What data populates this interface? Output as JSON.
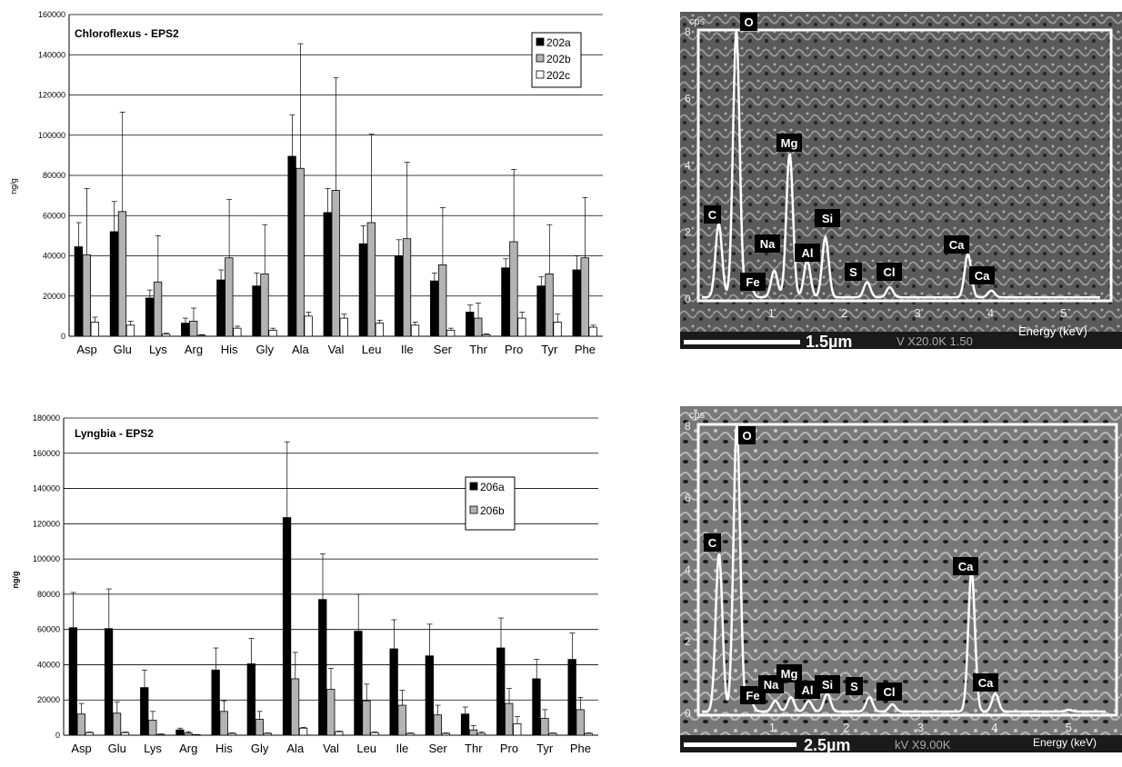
{
  "chart_data": [
    {
      "type": "bar",
      "title": "Chloroflexus - EPS2",
      "ylabel": "ng/g",
      "ylim": [
        0,
        160000
      ],
      "yticks": [
        0,
        20000,
        40000,
        60000,
        80000,
        100000,
        120000,
        140000,
        160000
      ],
      "grid": true,
      "legend_position": "top-right",
      "categories": [
        "Asp",
        "Glu",
        "Lys",
        "Arg",
        "His",
        "Gly",
        "Ala",
        "Val",
        "Leu",
        "Ile",
        "Ser",
        "Thr",
        "Pro",
        "Tyr",
        "Phe"
      ],
      "series": [
        {
          "name": "202a",
          "color": "#000000",
          "values": [
            44500,
            52000,
            19000,
            6500,
            28000,
            25000,
            89500,
            61500,
            46000,
            40000,
            27500,
            12000,
            34000,
            25000,
            33000
          ],
          "errors": [
            12000,
            15000,
            4000,
            2500,
            5000,
            6500,
            20500,
            12000,
            9000,
            8000,
            4000,
            3500,
            4500,
            4500,
            7000
          ]
        },
        {
          "name": "202b",
          "color": "#b3b3b3",
          "values": [
            40500,
            62000,
            27000,
            7500,
            39000,
            31000,
            83500,
            72500,
            56500,
            48500,
            35500,
            9000,
            47000,
            31000,
            39000
          ],
          "errors": [
            33000,
            49500,
            23000,
            6500,
            29000,
            24500,
            62000,
            56000,
            44000,
            38000,
            28500,
            7500,
            36000,
            24500,
            30000
          ]
        },
        {
          "name": "202c",
          "color": "#ffffff",
          "values": [
            7000,
            5500,
            1000,
            500,
            4000,
            3000,
            10000,
            9000,
            6500,
            5500,
            3000,
            800,
            9000,
            7000,
            4500
          ],
          "errors": [
            2500,
            2000,
            500,
            300,
            1000,
            1000,
            2000,
            2000,
            1500,
            1500,
            1000,
            400,
            3000,
            4000,
            1000
          ]
        }
      ]
    },
    {
      "type": "bar",
      "title": "Lyngbia - EPS2",
      "ylabel": "ng/g",
      "ylim": [
        0,
        180000
      ],
      "yticks": [
        0,
        20000,
        40000,
        60000,
        80000,
        100000,
        120000,
        140000,
        160000,
        180000
      ],
      "grid": true,
      "legend_position": "top-right",
      "categories": [
        "Asp",
        "Glu",
        "Lys",
        "Arg",
        "His",
        "Gly",
        "Ala",
        "Val",
        "Leu",
        "Ile",
        "Ser",
        "Thr",
        "Pro",
        "Tyr",
        "Phe"
      ],
      "series": [
        {
          "name": "206a",
          "color": "#000000",
          "values": [
            61000,
            60500,
            27000,
            3000,
            37000,
            40500,
            123500,
            77000,
            59000,
            49000,
            45000,
            12000,
            49500,
            32000,
            43000
          ],
          "errors": [
            20000,
            22500,
            10000,
            1000,
            12500,
            14500,
            43000,
            26000,
            21000,
            16500,
            18000,
            4000,
            17000,
            11000,
            15000
          ]
        },
        {
          "name": "206b",
          "color": "#b3b3b3",
          "values": [
            12000,
            12500,
            8500,
            1200,
            13500,
            9000,
            32000,
            26000,
            19500,
            17000,
            11500,
            3000,
            18000,
            9500,
            14500
          ],
          "errors": [
            6000,
            6500,
            5000,
            800,
            6000,
            4500,
            15000,
            12000,
            9500,
            8500,
            5500,
            2500,
            8500,
            5000,
            7000
          ]
        },
        {
          "name": "",
          "color": "#ffffff",
          "values": [
            1500,
            1500,
            500,
            300,
            1000,
            1000,
            4000,
            2000,
            1500,
            1000,
            1000,
            1000,
            6500,
            1000,
            1000
          ],
          "errors": [
            300,
            300,
            200,
            100,
            300,
            300,
            500,
            300,
            300,
            300,
            300,
            800,
            4000,
            300,
            300
          ]
        }
      ]
    }
  ],
  "sem_panels": [
    {
      "y_unit": "cps",
      "y_ticks": [
        "0",
        "2",
        "4",
        "6",
        "8"
      ],
      "x_ticks": [
        "1",
        "2",
        "3",
        "4",
        "5"
      ],
      "x_label": "Energy (keV)",
      "scale_bar": "1.5µm",
      "footer_text": "V X20.0K 1.50",
      "peaks": [
        {
          "label": "O",
          "energy": 0.52,
          "height": 8
        },
        {
          "label": "C",
          "energy": 0.28,
          "height": 2.2
        },
        {
          "label": "Fe",
          "energy": 0.7,
          "height": 0.4
        },
        {
          "label": "Na",
          "energy": 1.04,
          "height": 0.8
        },
        {
          "label": "Mg",
          "energy": 1.25,
          "height": 4.3
        },
        {
          "label": "Al",
          "energy": 1.49,
          "height": 1.1
        },
        {
          "label": "Si",
          "energy": 1.74,
          "height": 1.8
        },
        {
          "label": "S",
          "energy": 2.31,
          "height": 0.45
        },
        {
          "label": "Cl",
          "energy": 2.62,
          "height": 0.3
        },
        {
          "label": "Ca",
          "energy": 3.69,
          "height": 1.3
        },
        {
          "label": "Ca",
          "energy": 4.01,
          "height": 0.2
        },
        {
          "label": "Fe",
          "energy": 6.4,
          "height": 0.05
        }
      ]
    },
    {
      "y_unit": "cps",
      "y_ticks": [
        "0",
        "2",
        "4",
        "6",
        "8"
      ],
      "x_ticks": [
        "1",
        "2",
        "3",
        "4",
        "5"
      ],
      "x_label": "Energy (keV)",
      "scale_bar": "2.5µm",
      "footer_text": "kV X9.00K",
      "peaks": [
        {
          "label": "O",
          "energy": 0.52,
          "height": 8
        },
        {
          "label": "C",
          "energy": 0.28,
          "height": 4.4
        },
        {
          "label": "Fe",
          "energy": 0.7,
          "height": 0.3
        },
        {
          "label": "Na",
          "energy": 1.04,
          "height": 0.3
        },
        {
          "label": "Mg",
          "energy": 1.25,
          "height": 0.4
        },
        {
          "label": "Al",
          "energy": 1.49,
          "height": 0.3
        },
        {
          "label": "Si",
          "energy": 1.74,
          "height": 0.5
        },
        {
          "label": "S",
          "energy": 2.31,
          "height": 0.4
        },
        {
          "label": "Cl",
          "energy": 2.62,
          "height": 0.2
        },
        {
          "label": "Ca",
          "energy": 3.69,
          "height": 3.9
        },
        {
          "label": "Ca",
          "energy": 4.01,
          "height": 0.5
        },
        {
          "label": "",
          "energy": 5.0,
          "height": 0.05
        }
      ]
    }
  ]
}
